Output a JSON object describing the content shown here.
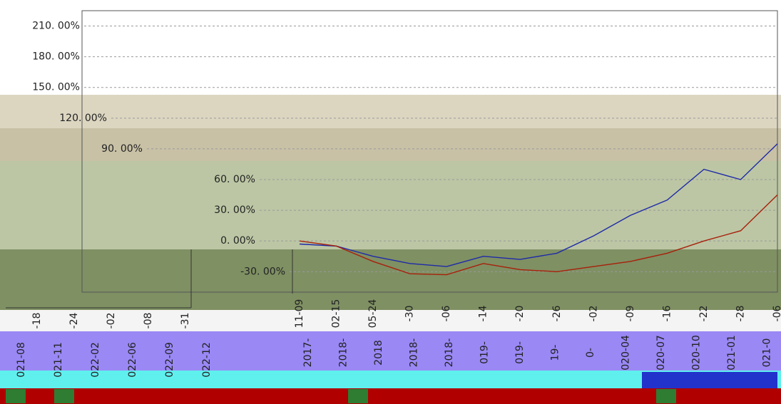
{
  "chart_data": {
    "type": "line",
    "categories": [
      "11-09",
      "02-15",
      "05-24",
      "-30",
      "-06",
      "-14",
      "-20",
      "-26",
      "-02",
      "-09",
      "-16",
      "-22",
      "-28",
      "-06"
    ],
    "series": [
      {
        "name": null,
        "color": "#1f2aa8",
        "values": [
          -3,
          -5,
          -15,
          -22,
          -25,
          -15,
          -18,
          -12,
          5,
          25,
          40,
          70,
          60,
          95
        ]
      },
      {
        "name": null,
        "color": "#a81f0a",
        "values": [
          0,
          -5,
          -20,
          -32,
          -33,
          -22,
          -28,
          -30,
          -25,
          -20,
          -12,
          0,
          10,
          45
        ]
      }
    ],
    "ylim": [
      -50,
      225
    ],
    "yticks": [
      {
        "value": 210,
        "label": "210. 00%"
      },
      {
        "value": 180,
        "label": "180. 00%"
      },
      {
        "value": 150,
        "label": "150. 00%"
      },
      {
        "value": 120,
        "label": "120. 00%"
      },
      {
        "value": 90,
        "label": "90. 00%"
      },
      {
        "value": 60,
        "label": "60. 00%"
      },
      {
        "value": 30,
        "label": "30. 00%"
      },
      {
        "value": 0,
        "label": "0. 00%"
      },
      {
        "value": -30,
        "label": "-30. 00%"
      }
    ],
    "grid": true
  },
  "ui_fragments": {
    "left_x_labels": [
      "-18",
      "-24",
      "-02",
      "-08",
      "-31"
    ],
    "left_date_labels": [
      "021-08",
      "021-11",
      "022-02",
      "022-06",
      "022-09",
      "022-12"
    ],
    "right_date_labels": [
      "2017-",
      "2018-",
      "2018",
      "2018-",
      "2018-",
      "019-",
      "019-",
      "19-",
      "0-",
      "020-04",
      "020-07",
      "020-10",
      "021-01",
      "021-0"
    ]
  }
}
